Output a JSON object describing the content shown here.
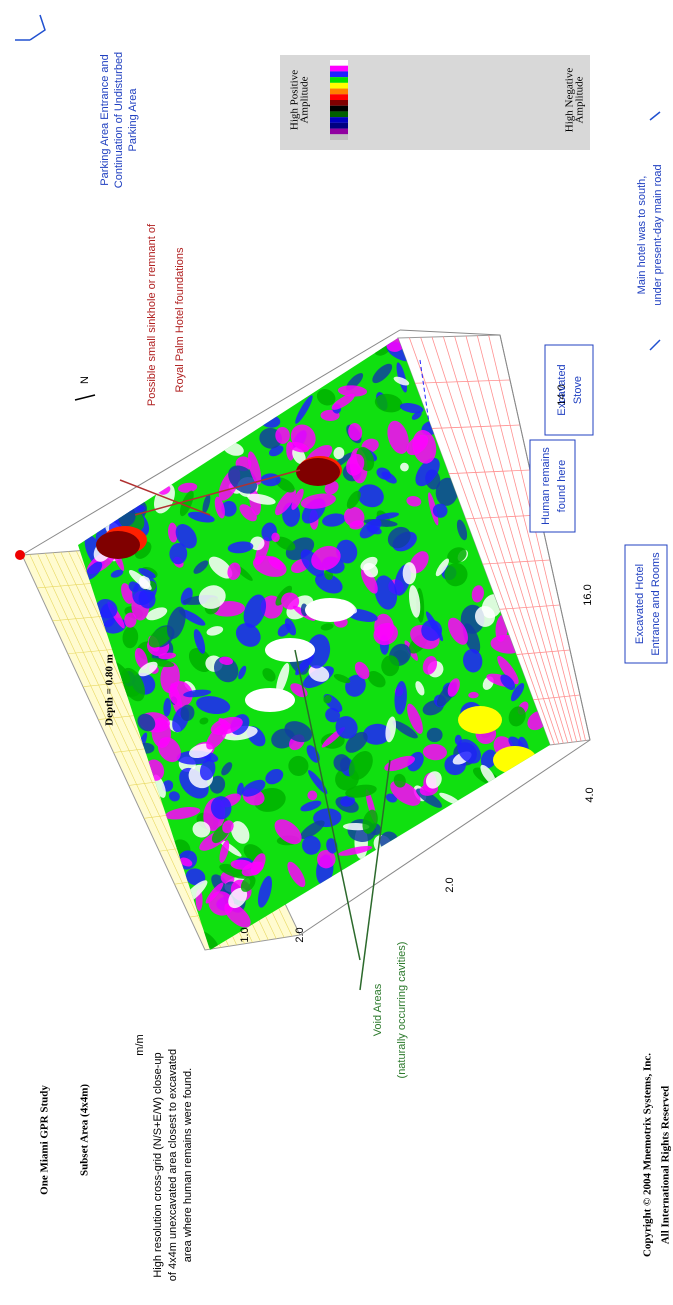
{
  "title": "One Miami GPR Study",
  "subtitle": "Subset Area (4x4m)",
  "description": [
    "High resolution cross-grid (N/S+E/W) close-up",
    "of 4x4m unexcavated area closest to excavated",
    "area where human remains were found."
  ],
  "depth_label": "Depth = 0.80 m",
  "north": "N",
  "axis": {
    "unit": "m/m",
    "left_ticks": [
      "1.0",
      "2.0"
    ],
    "bottom_ticks": [
      "2.0",
      "4.0"
    ],
    "right_ticks": [
      "16.0",
      "14.0"
    ]
  },
  "annotations": {
    "sinkhole": [
      "Possible small sinkhole or remnant of",
      "Royal Palm Hotel foundations"
    ],
    "voids": [
      "Void Areas",
      "(naturally occurring cavities)"
    ],
    "stove": [
      "Excavated",
      "Stove"
    ],
    "remains": [
      "Human remains",
      "found here"
    ],
    "hotel": [
      "Excavated Hotel",
      "Entrance and Rooms"
    ],
    "parking": [
      "Parking Area Entrance and",
      "Continuation of Undisturbed",
      "Parking Area"
    ],
    "main_hotel": [
      "Main hotel was to south,",
      "under present-day main road"
    ]
  },
  "legend": {
    "high": [
      "High Positive",
      "Amplitude"
    ],
    "low": [
      "High Negative",
      "Amplitude"
    ],
    "colors": [
      "#ffffff",
      "#ff00ff",
      "#2020ff",
      "#00e000",
      "#ffff00",
      "#ff8000",
      "#ff0000",
      "#800000",
      "#000000",
      "#006000",
      "#0000c0",
      "#000080",
      "#9000a0",
      "#c0c0c0"
    ]
  },
  "copyright": [
    "Copyright © 2004 Mnemotrix Systems, Inc.",
    "All International Rights Reserved"
  ]
}
